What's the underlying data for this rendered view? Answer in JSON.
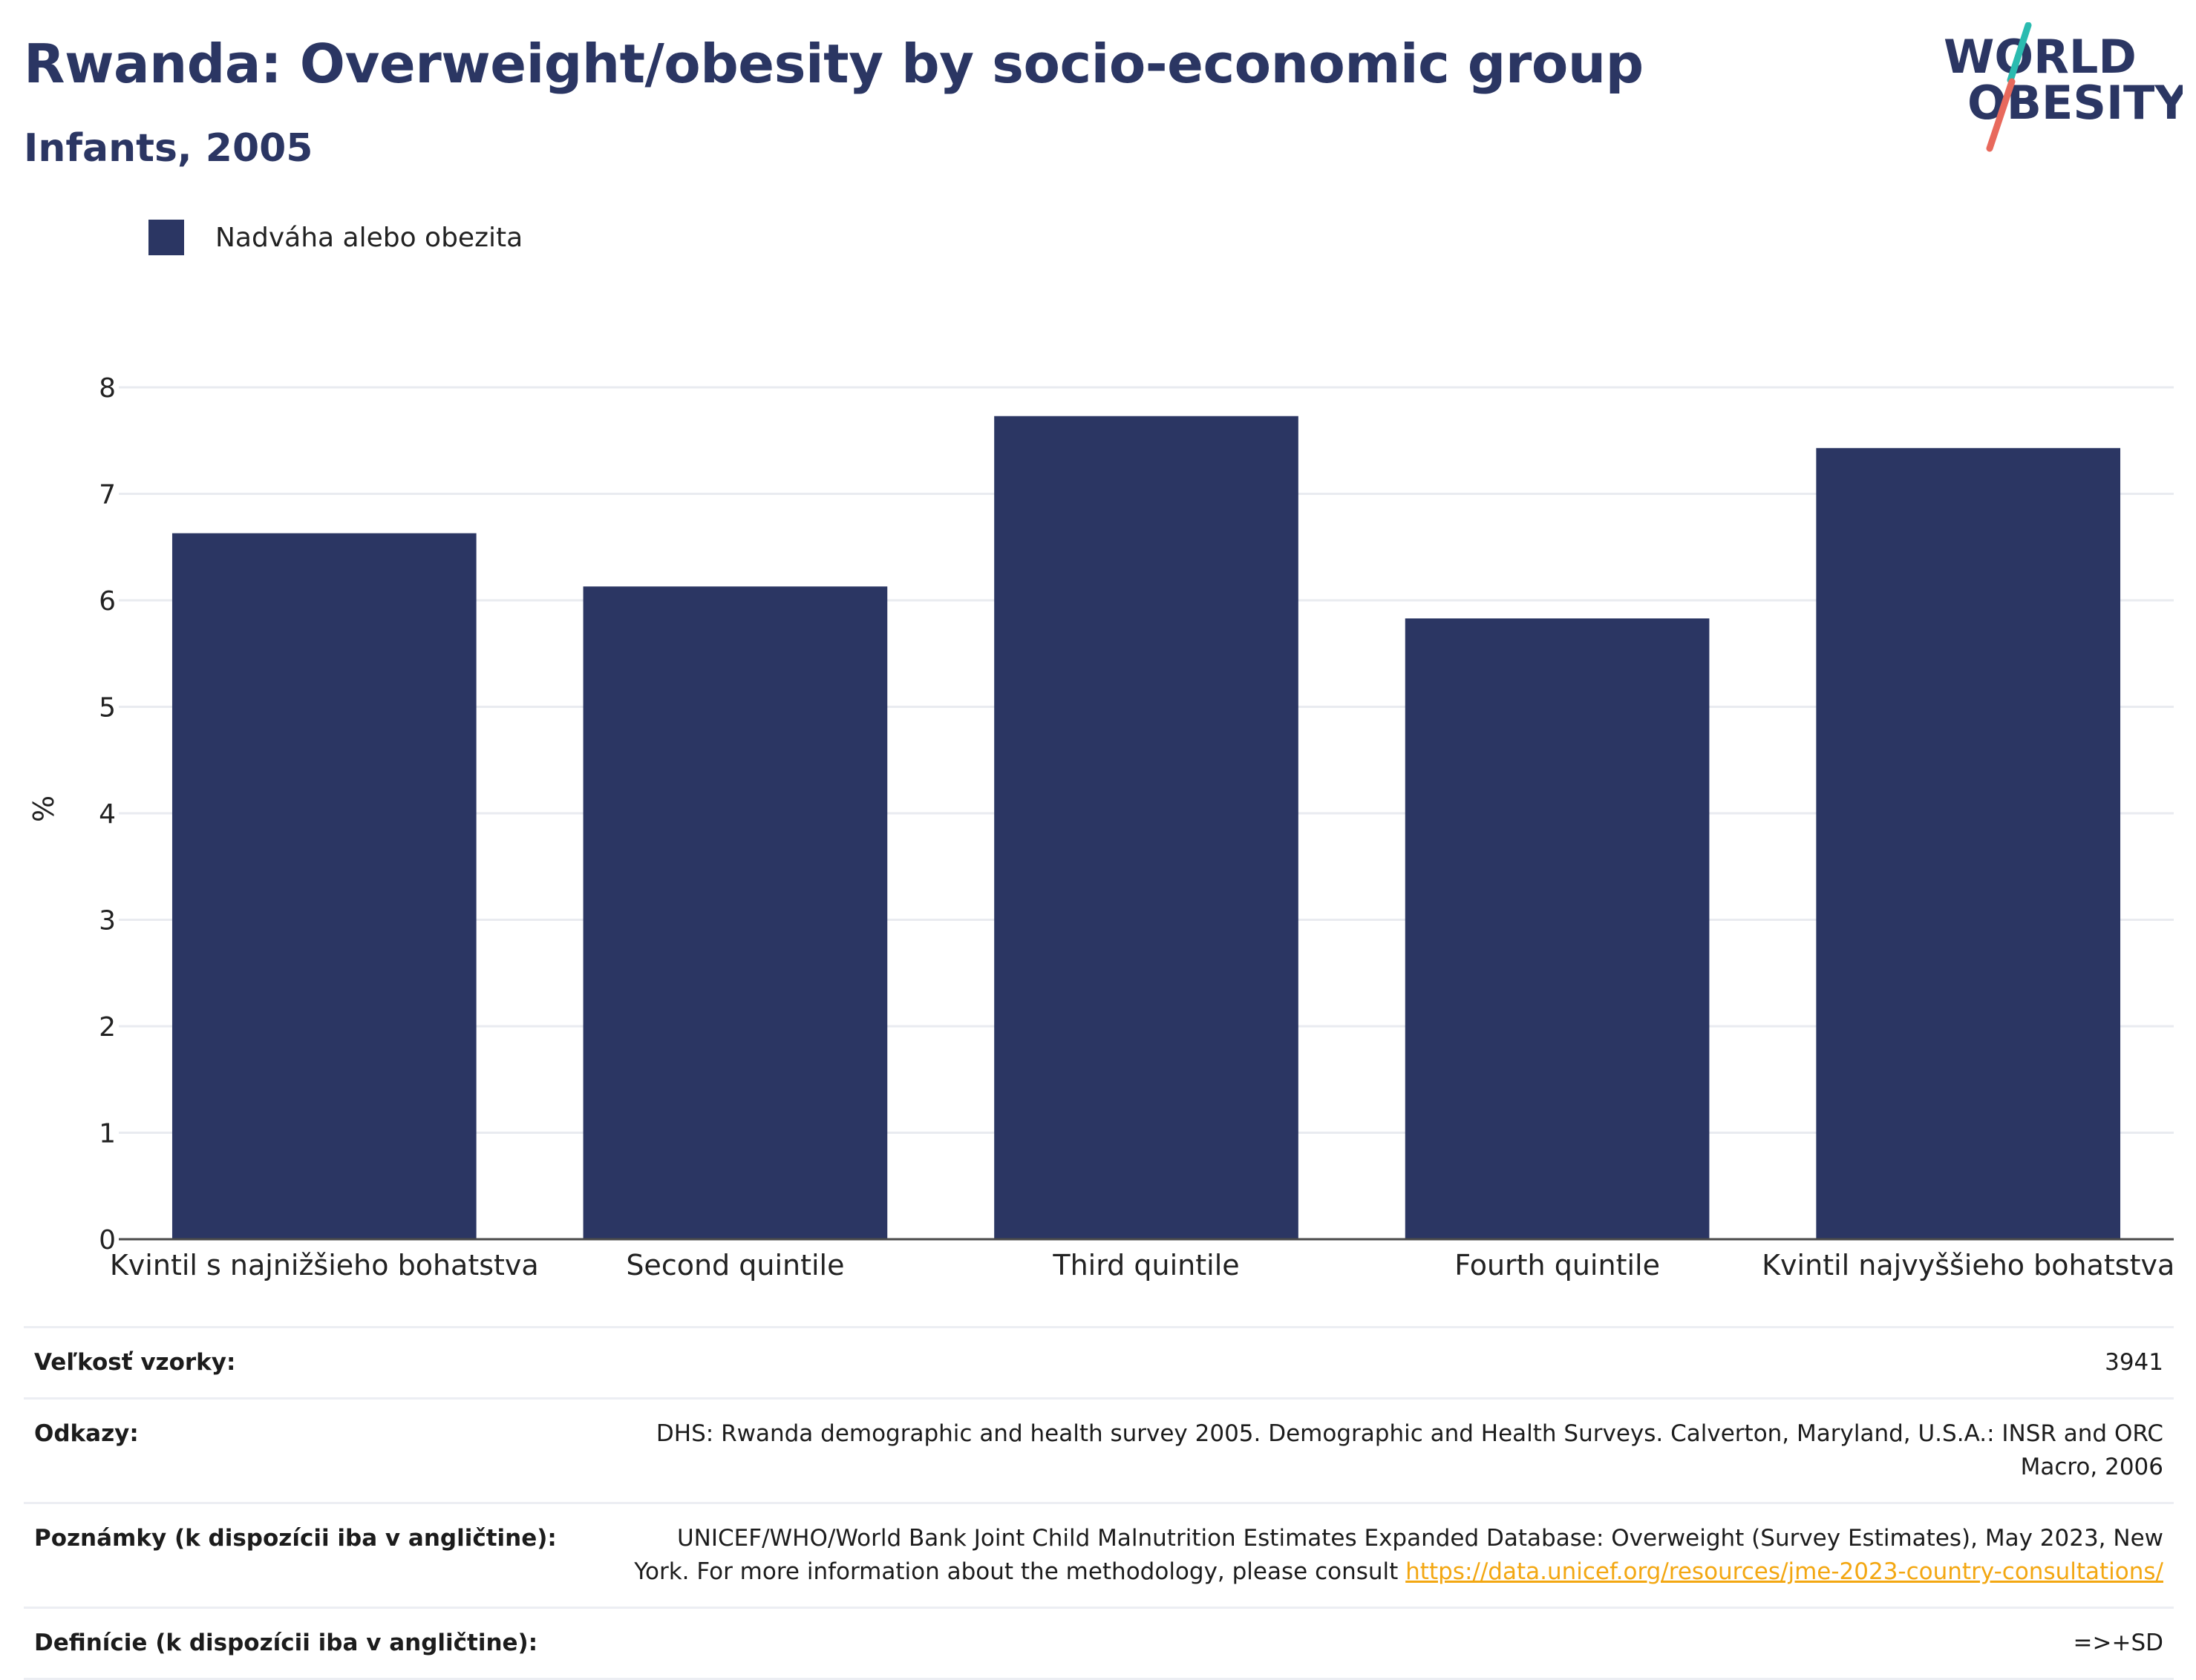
{
  "header": {
    "title": "Rwanda: Overweight/obesity by socio-economic group",
    "subtitle": "Infants, 2005"
  },
  "logo": {
    "line1": "WORLD",
    "line2": "OBESITY",
    "accent_colors": [
      "#2bbbb0",
      "#e8695c"
    ]
  },
  "legend": {
    "label": "Nadváha alebo obezita",
    "color": "#2b3663"
  },
  "chart_data": {
    "type": "bar",
    "categories": [
      "Kvintil s najnižšieho bohatstva",
      "Second quintile",
      "Third quintile",
      "Fourth quintile",
      "Kvintil najvyššieho bohatstva"
    ],
    "series": [
      {
        "name": "Nadváha alebo obezita",
        "values": [
          6.63,
          6.13,
          7.73,
          5.83,
          7.43
        ],
        "color": "#2b3663"
      }
    ],
    "ylabel": "%",
    "xlabel": "",
    "ylim": [
      0,
      8
    ],
    "yticks": [
      "0",
      "1",
      "2",
      "3",
      "4",
      "5",
      "6",
      "7",
      "8"
    ],
    "grid": true,
    "legend_position": "top-left"
  },
  "info": {
    "sample_size": {
      "key": "Veľkosť vzorky:",
      "value": "3941"
    },
    "references": {
      "key": "Odkazy:",
      "line1": "DHS: Rwanda demographic and health survey 2005. Demographic and Health Surveys. Calverton, Maryland, U.S.A.: INSR and ORC",
      "line2": "Macro, 2006"
    },
    "notes": {
      "key": "Poznámky (k dispozícii iba v angličtine):",
      "line1": "UNICEF/WHO/World Bank Joint Child Malnutrition Estimates Expanded Database: Overweight (Survey Estimates), May 2023, New",
      "line2_text": "York. For more information about the methodology, please consult ",
      "link": "https://data.unicef.org/resources/jme-2023-country-consultations/"
    },
    "definitions": {
      "key": "Definície (k dispozícii iba v angličtine):",
      "value": "=>+SD"
    }
  }
}
